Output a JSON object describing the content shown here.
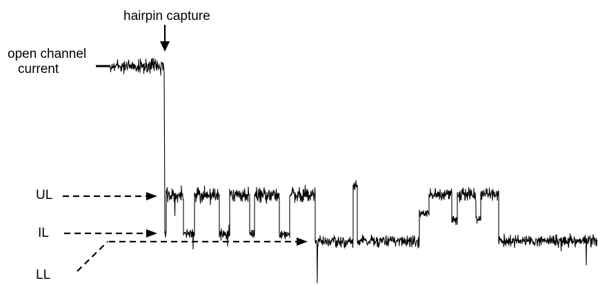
{
  "labels": {
    "hairpin_capture": "hairpin capture",
    "open_channel_line1": "open channel",
    "open_channel_line2": "current",
    "ul": "UL",
    "il": "IL",
    "ll": "LL"
  }
}
